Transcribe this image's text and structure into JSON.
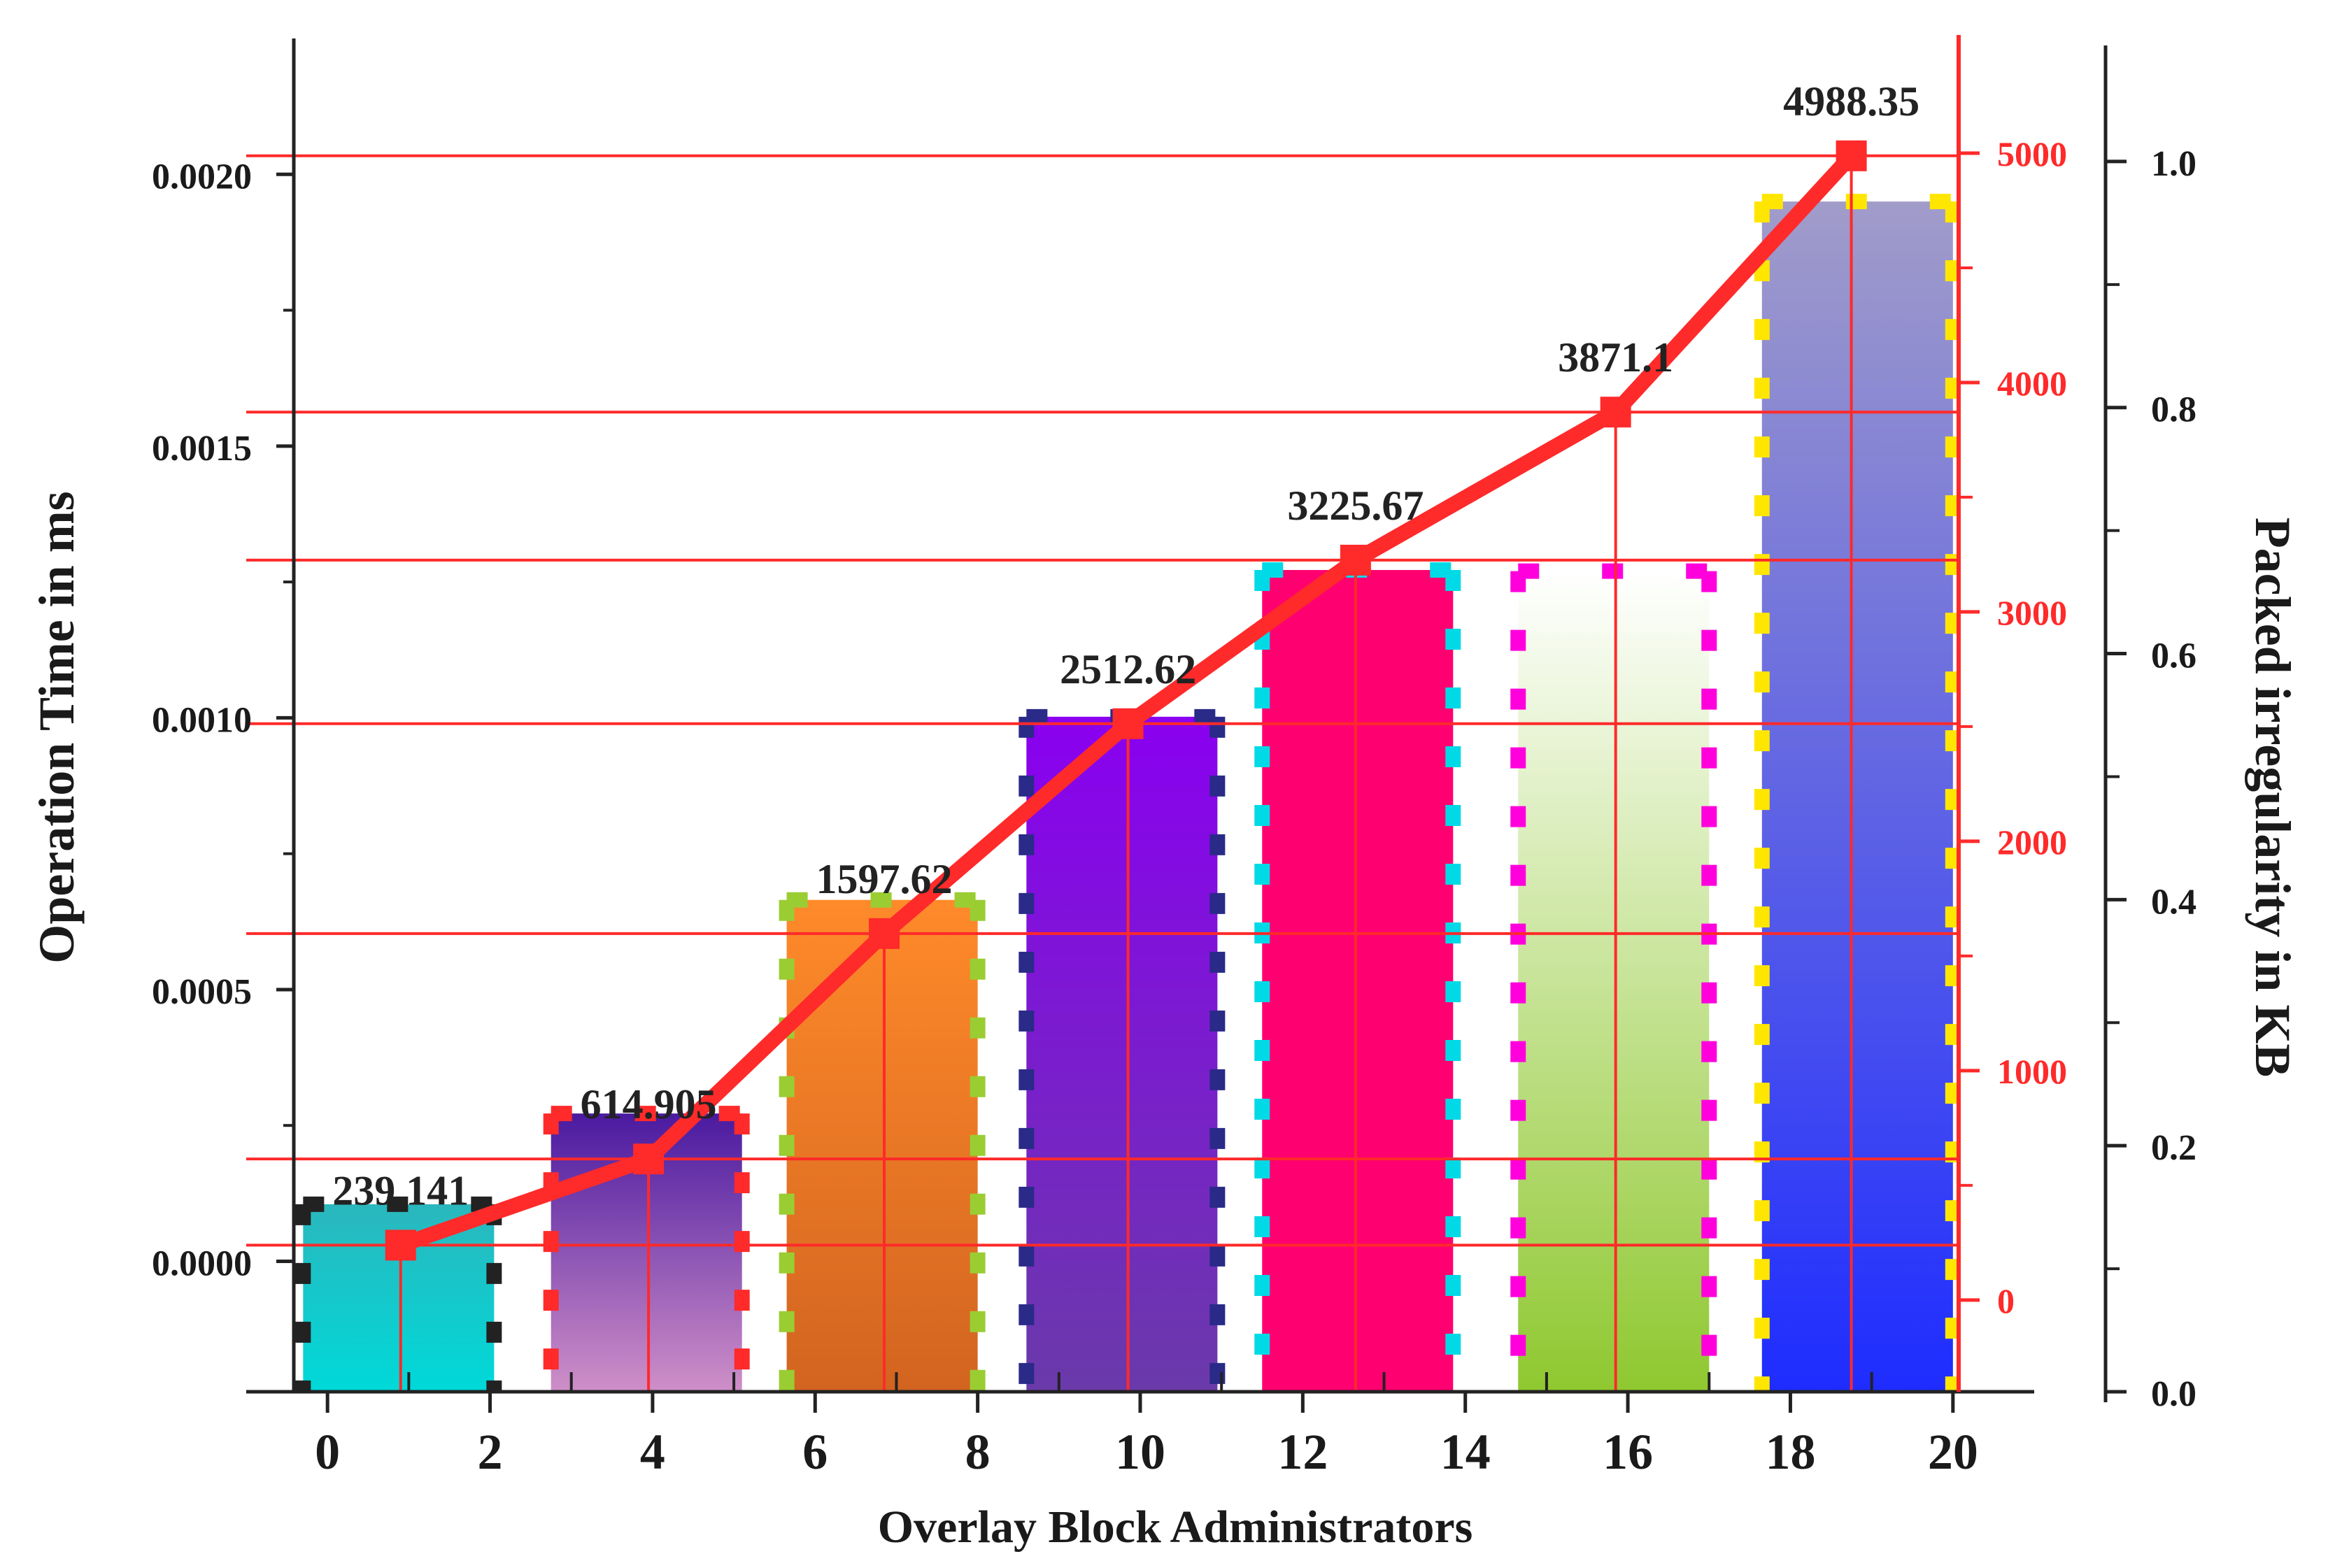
{
  "chart_data": {
    "type": "bar+line",
    "xlabel": "Overlay Block Administrators",
    "ylabel_left": "Operation Time in ms",
    "ylabel_right": "Packed irregularity in KB",
    "x_range": [
      -1,
      21
    ],
    "x_ticks": [
      "0",
      "2",
      "4",
      "6",
      "8",
      "10",
      "12",
      "14",
      "16",
      "18",
      "20"
    ],
    "x_tick_values": [
      0,
      2,
      4,
      6,
      8,
      10,
      12,
      14,
      16,
      18,
      20
    ],
    "left_axis": {
      "range": [
        -0.00024,
        0.00225
      ],
      "ticks": [
        "0.0000",
        "0.0005",
        "0.0010",
        "0.0015",
        "0.0020"
      ],
      "tick_values": [
        0,
        0.0005,
        0.001,
        0.0015,
        0.002
      ]
    },
    "red_axis": {
      "range": [
        -400,
        5500
      ],
      "ticks": [
        "0",
        "1000",
        "2000",
        "3000",
        "4000",
        "5000"
      ],
      "tick_values": [
        0,
        1000,
        2000,
        3000,
        4000,
        5000
      ],
      "color": "#ff2a2a"
    },
    "right_axis": {
      "range": [
        0,
        1.1
      ],
      "ticks": [
        "0.0",
        "0.2",
        "0.4",
        "0.6",
        "0.8",
        "1.0"
      ],
      "tick_values": [
        0,
        0.2,
        0.4,
        0.6,
        0.8,
        1.0
      ]
    },
    "bars": [
      {
        "x0": -0.3,
        "x1": 2.05,
        "value": 0.000105,
        "top": "#2ab7bd",
        "bottom": "#00d9d9",
        "dash": "#222222"
      },
      {
        "x0": 2.75,
        "x1": 5.1,
        "value": 0.000272,
        "top": "#4a1aa0",
        "bottom": "#cf8fc8",
        "dash": "#ff2a2a"
      },
      {
        "x0": 5.65,
        "x1": 8.0,
        "value": 0.000665,
        "top": "#ff8a2a",
        "bottom": "#d26420",
        "dash": "#9acd32"
      },
      {
        "x0": 8.6,
        "x1": 10.95,
        "value": 0.001002,
        "top": "#8a00f0",
        "bottom": "#6a3aaa",
        "dash": "#2a2a88"
      },
      {
        "x0": 11.5,
        "x1": 13.85,
        "value": 0.001272,
        "top": "#ff0070",
        "bottom": "#ff0070",
        "dash": "#00d9e6"
      },
      {
        "x0": 14.65,
        "x1": 17.0,
        "value": 0.00127,
        "top": "#ffffff",
        "bottom": "#8fc830",
        "dash": "#ff00dd"
      },
      {
        "x0": 17.65,
        "x1": 20.0,
        "value": 0.00195,
        "top": "#a19cc9",
        "bottom": "#1e2cff",
        "dash": "#ffe600"
      }
    ],
    "series": [
      {
        "name": "Packed irregularity",
        "axis": "red",
        "x": [
          0.9,
          3.95,
          6.85,
          9.85,
          12.65,
          15.85,
          18.75
        ],
        "values": [
          239.141,
          614.905,
          1597.62,
          2512.62,
          3225.67,
          3871.1,
          4988.35
        ],
        "labels": [
          "239.141",
          "614.905",
          "1597.62",
          "2512.62",
          "3225.67",
          "3871.1",
          "4988.35"
        ],
        "color": "#ff2a2a"
      }
    ]
  }
}
